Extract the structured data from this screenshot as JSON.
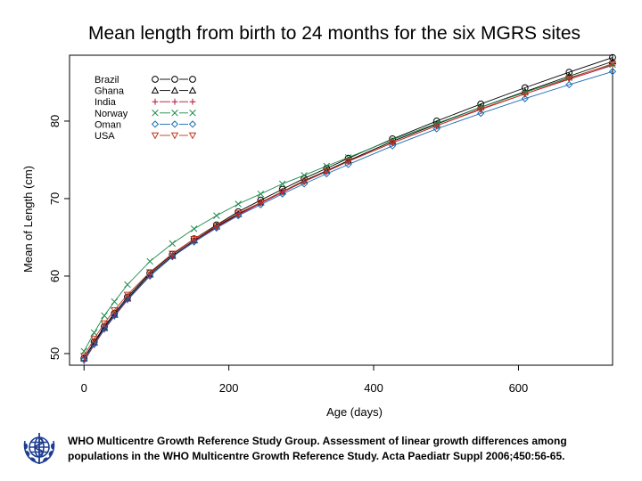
{
  "chart_data": {
    "type": "line",
    "title": "Mean length from birth to 24 months for the six MGRS sites",
    "xlabel": "Age (days)",
    "ylabel": "Mean of Length (cm)",
    "xlim": [
      -20,
      730
    ],
    "ylim": [
      48.5,
      88.5
    ],
    "xticks": [
      0,
      200,
      400,
      600
    ],
    "yticks": [
      50,
      60,
      70,
      80
    ],
    "x": [
      0,
      14,
      28,
      42,
      60,
      91,
      122,
      152,
      183,
      213,
      244,
      274,
      304,
      335,
      365,
      426,
      487,
      548,
      609,
      670,
      730
    ],
    "legend_position": "top-left",
    "series": [
      {
        "name": "Brazil",
        "marker": "circle",
        "color": "#000000",
        "values": [
          49.4,
          51.5,
          53.5,
          55.2,
          57.3,
          60.4,
          62.8,
          64.8,
          66.6,
          68.3,
          69.8,
          71.2,
          72.6,
          73.9,
          75.2,
          77.7,
          80.0,
          82.2,
          84.3,
          86.3,
          88.2
        ]
      },
      {
        "name": "Ghana",
        "marker": "triangle",
        "color": "#000000",
        "values": [
          49.4,
          51.4,
          53.3,
          55.0,
          57.1,
          60.2,
          62.6,
          64.6,
          66.4,
          68.0,
          69.5,
          70.9,
          72.3,
          73.6,
          74.9,
          77.4,
          79.6,
          81.8,
          83.8,
          85.8,
          87.7
        ]
      },
      {
        "name": "India",
        "marker": "plus",
        "color": "#b0103a",
        "values": [
          49.0,
          51.1,
          53.1,
          54.8,
          56.9,
          60.0,
          62.5,
          64.5,
          66.3,
          67.9,
          69.4,
          70.8,
          72.2,
          73.5,
          74.8,
          77.2,
          79.4,
          81.6,
          83.5,
          85.4,
          87.2
        ]
      },
      {
        "name": "Norway",
        "marker": "x",
        "color": "#1a8a4a",
        "values": [
          50.3,
          52.7,
          54.9,
          56.7,
          58.9,
          61.9,
          64.2,
          66.1,
          67.8,
          69.3,
          70.6,
          71.9,
          73.0,
          74.2,
          75.3,
          77.6,
          79.7,
          81.8,
          83.7,
          85.6,
          87.3
        ]
      },
      {
        "name": "Oman",
        "marker": "diamond",
        "color": "#1a6bb5",
        "values": [
          49.2,
          51.2,
          53.2,
          54.9,
          57.0,
          60.0,
          62.5,
          64.4,
          66.2,
          67.8,
          69.2,
          70.6,
          71.9,
          73.2,
          74.4,
          76.8,
          79.0,
          81.0,
          82.9,
          84.7,
          86.4
        ]
      },
      {
        "name": "USA",
        "marker": "triangle-down",
        "color": "#c4341c",
        "values": [
          49.7,
          51.9,
          53.9,
          55.6,
          57.6,
          60.5,
          62.9,
          64.8,
          66.5,
          68.1,
          69.5,
          70.9,
          72.2,
          73.5,
          74.8,
          77.2,
          79.4,
          81.5,
          83.5,
          85.5,
          87.4
        ]
      }
    ]
  },
  "citation": "WHO Multicentre Growth Reference Study Group. Assessment of linear growth differences among populations in the WHO Multicentre Growth Reference Study. Acta Paediatr Suppl 2006;450:56-65.",
  "logo": {
    "name": "WHO emblem",
    "color": "#1d3d8f"
  }
}
